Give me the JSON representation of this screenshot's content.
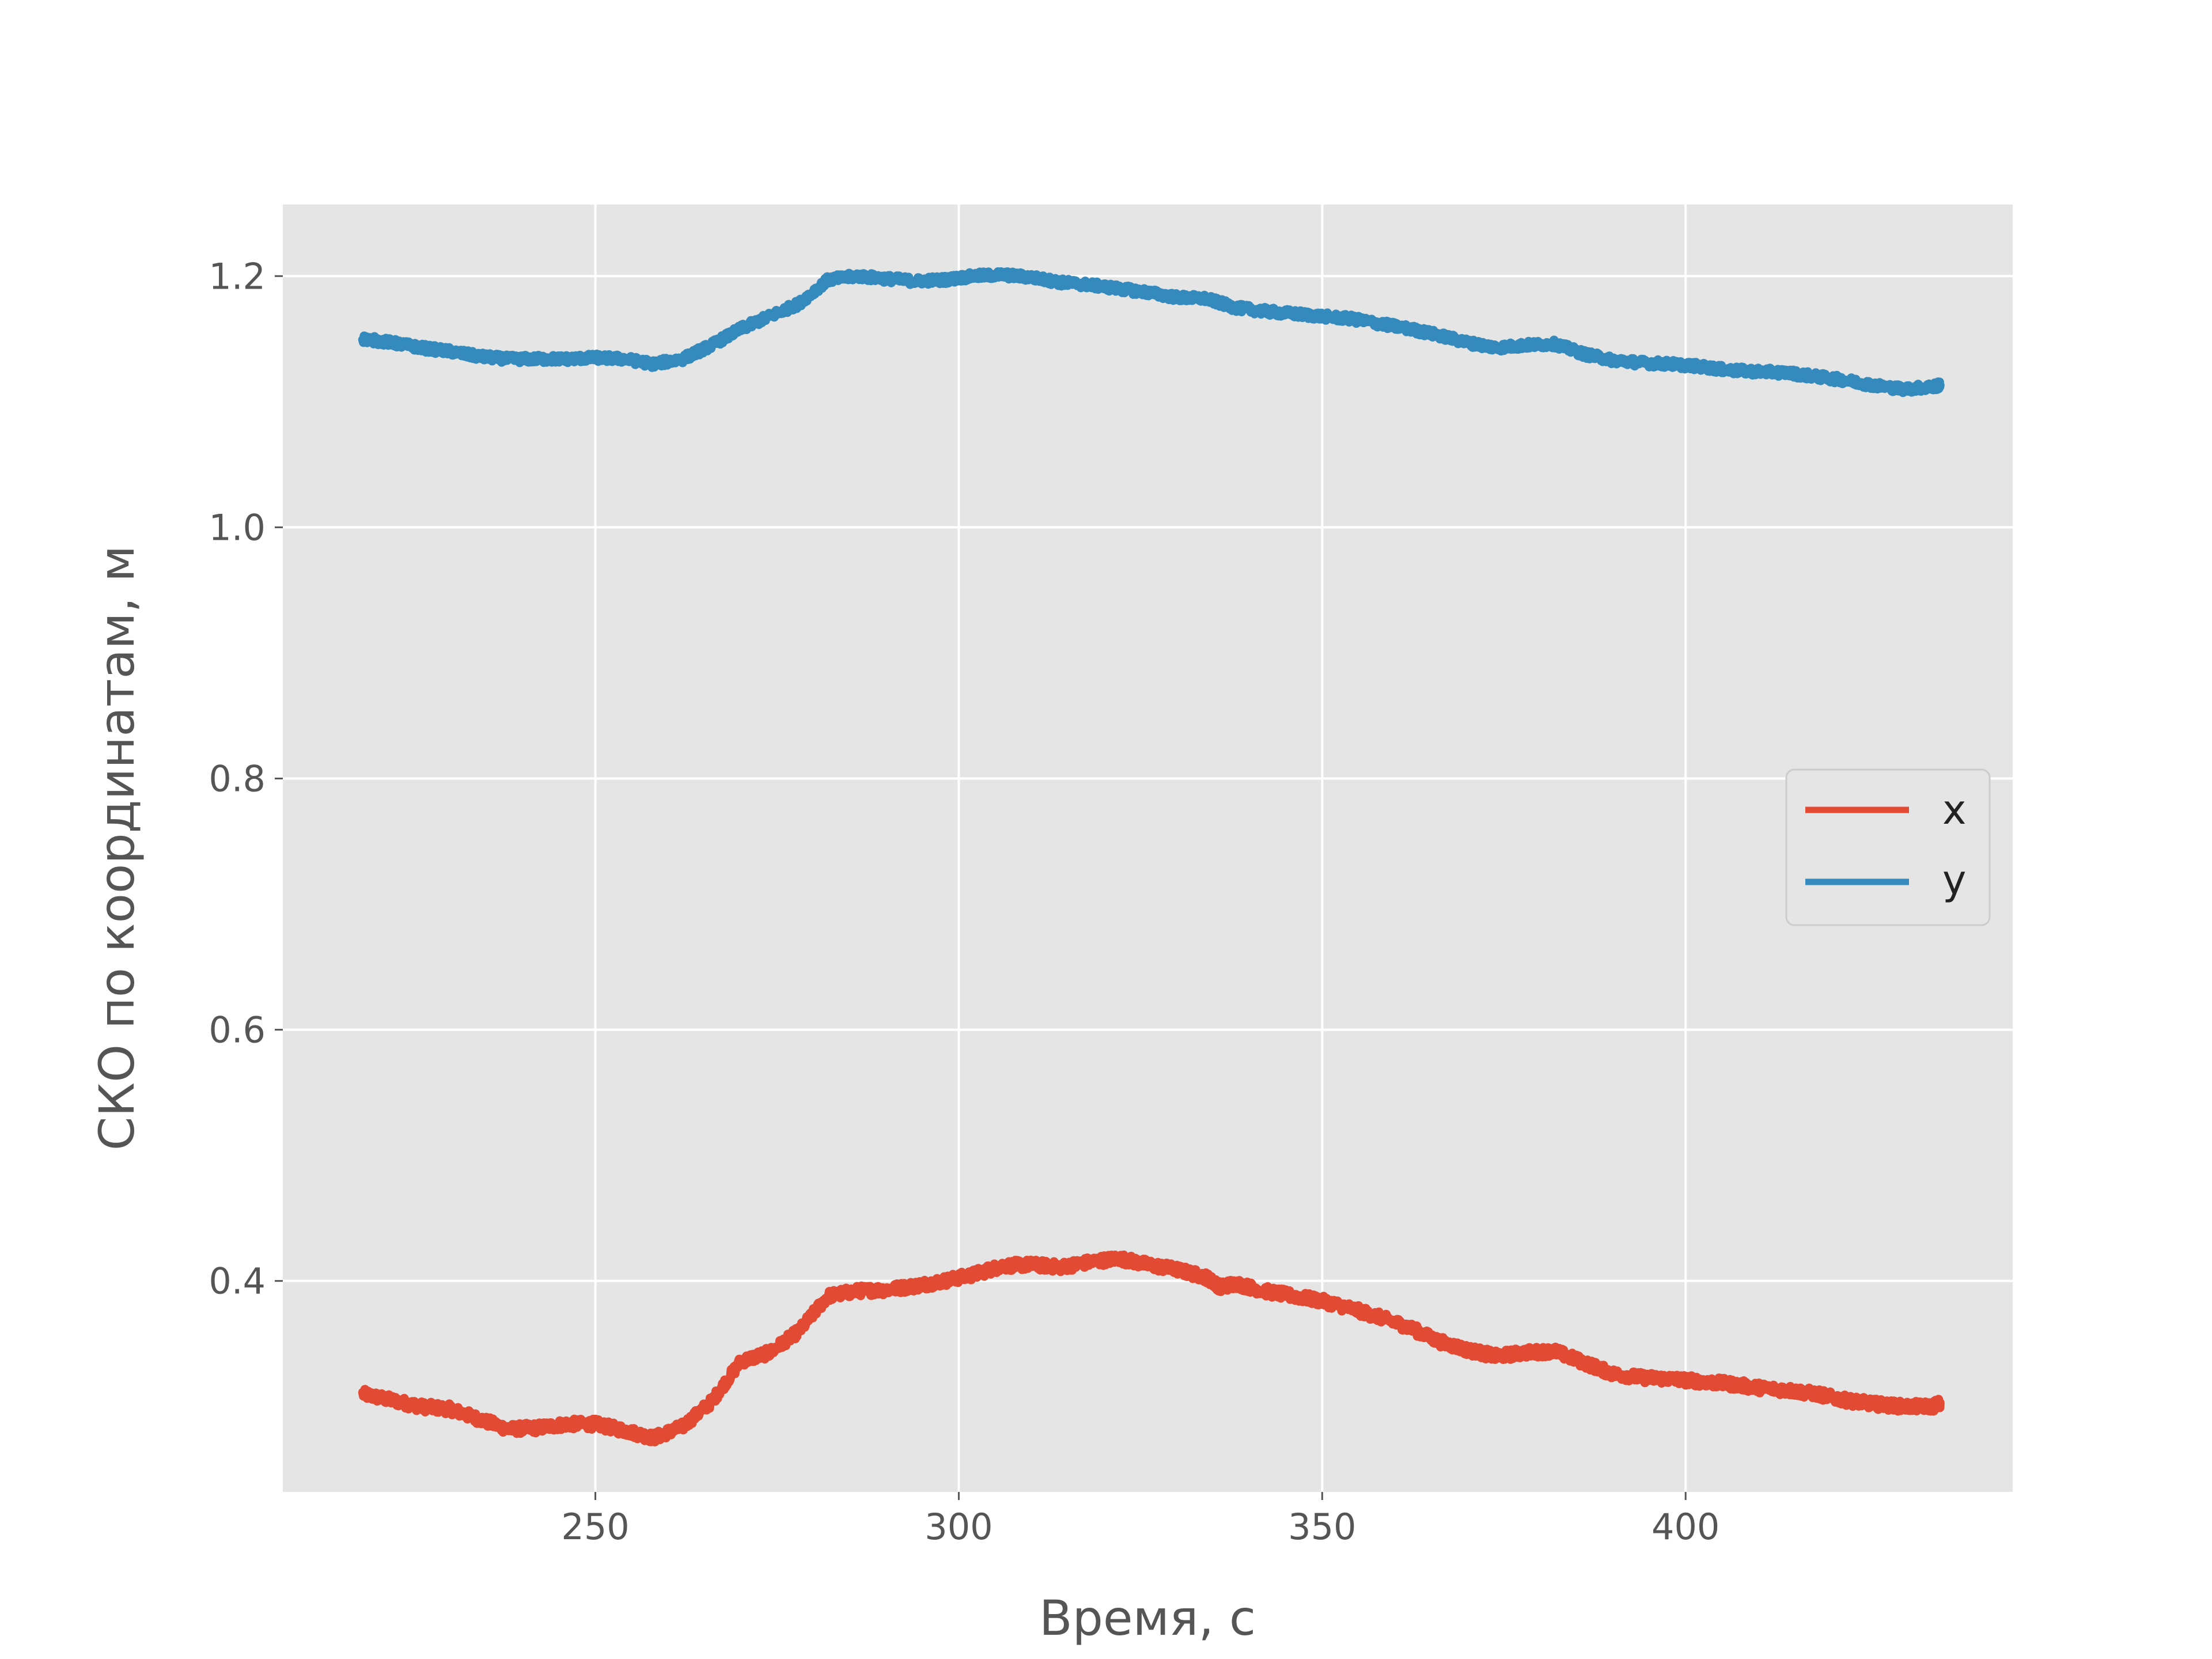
{
  "chart_data": {
    "type": "line",
    "title": "",
    "xlabel": "Время, с",
    "ylabel": "СКО по координатам, м",
    "xlim": [
      207,
      445
    ],
    "ylim": [
      0.232,
      1.257
    ],
    "xticks": [
      250,
      300,
      350,
      400
    ],
    "yticks": [
      0.4,
      0.6,
      0.8,
      1.0,
      1.2
    ],
    "xtick_labels": [
      "250",
      "300",
      "350",
      "400"
    ],
    "ytick_labels": [
      "0.4",
      "0.6",
      "0.8",
      "1.0",
      "1.2"
    ],
    "grid": true,
    "style": "ggplot",
    "legend_position": "center-right",
    "series": [
      {
        "name": "x",
        "color": "#E24A33",
        "x": [
          218,
          222,
          226,
          230,
          234,
          238,
          242,
          246,
          250,
          254,
          258,
          262,
          266,
          270,
          274,
          278,
          282,
          286,
          290,
          294,
          298,
          302,
          306,
          310,
          314,
          318,
          322,
          326,
          330,
          334,
          336,
          338,
          342,
          346,
          350,
          354,
          358,
          362,
          366,
          370,
          374,
          378,
          382,
          386,
          390,
          394,
          398,
          402,
          406,
          410,
          414,
          418,
          422,
          426,
          430,
          434,
          435
        ],
        "y": [
          0.31,
          0.305,
          0.3,
          0.298,
          0.29,
          0.282,
          0.283,
          0.286,
          0.286,
          0.281,
          0.275,
          0.284,
          0.304,
          0.336,
          0.343,
          0.36,
          0.388,
          0.392,
          0.393,
          0.396,
          0.4,
          0.405,
          0.412,
          0.413,
          0.411,
          0.415,
          0.418,
          0.413,
          0.409,
          0.403,
          0.395,
          0.398,
          0.392,
          0.388,
          0.384,
          0.378,
          0.371,
          0.363,
          0.352,
          0.345,
          0.34,
          0.343,
          0.344,
          0.335,
          0.326,
          0.323,
          0.322,
          0.32,
          0.318,
          0.315,
          0.313,
          0.31,
          0.305,
          0.302,
          0.3,
          0.3,
          0.303
        ],
        "noise": 0.004
      },
      {
        "name": "y",
        "color": "#348ABD",
        "x": [
          218,
          222,
          226,
          230,
          234,
          238,
          242,
          246,
          250,
          254,
          258,
          262,
          266,
          270,
          274,
          278,
          282,
          286,
          290,
          294,
          298,
          302,
          306,
          310,
          314,
          318,
          322,
          326,
          330,
          334,
          338,
          342,
          346,
          350,
          354,
          358,
          362,
          366,
          370,
          374,
          378,
          382,
          386,
          390,
          394,
          398,
          402,
          406,
          410,
          414,
          418,
          422,
          426,
          430,
          434,
          435
        ],
        "y": [
          1.15,
          1.147,
          1.143,
          1.14,
          1.136,
          1.134,
          1.134,
          1.134,
          1.135,
          1.134,
          1.13,
          1.134,
          1.145,
          1.158,
          1.168,
          1.178,
          1.197,
          1.2,
          1.198,
          1.196,
          1.197,
          1.2,
          1.201,
          1.199,
          1.195,
          1.193,
          1.19,
          1.187,
          1.183,
          1.182,
          1.175,
          1.172,
          1.17,
          1.168,
          1.166,
          1.162,
          1.158,
          1.153,
          1.147,
          1.143,
          1.145,
          1.146,
          1.138,
          1.133,
          1.131,
          1.13,
          1.128,
          1.125,
          1.124,
          1.123,
          1.12,
          1.117,
          1.113,
          1.11,
          1.112,
          1.113
        ],
        "noise": 0.003
      }
    ]
  }
}
